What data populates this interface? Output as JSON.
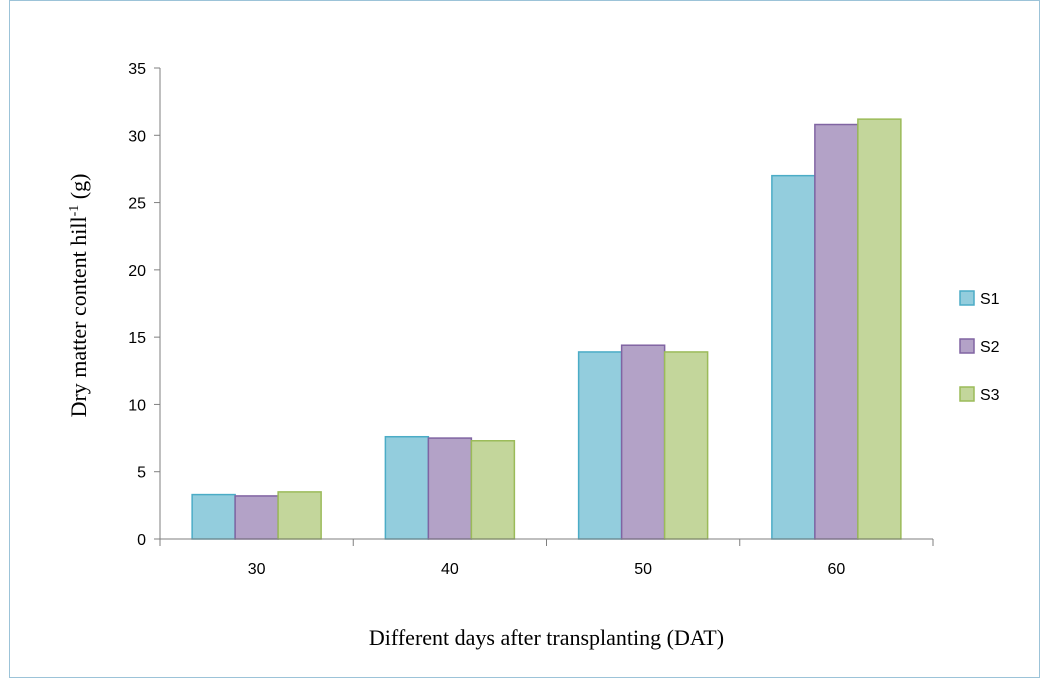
{
  "chart_data": {
    "type": "bar",
    "categories": [
      "30",
      "40",
      "50",
      "60"
    ],
    "series": [
      {
        "name": "S1",
        "values": [
          3.3,
          7.6,
          13.9,
          27.0
        ],
        "color": "#93cddd",
        "stroke": "#4bacc6"
      },
      {
        "name": "S2",
        "values": [
          3.2,
          7.5,
          14.4,
          30.8
        ],
        "color": "#b3a2c7",
        "stroke": "#8064a2"
      },
      {
        "name": "S3",
        "values": [
          3.5,
          7.3,
          13.9,
          31.2
        ],
        "color": "#c3d69b",
        "stroke": "#9bbb59"
      }
    ],
    "xlabel": "Different  days after transplanting  (DAT)",
    "ylabel": {
      "main": "Dry matter  content  hill",
      "superscript": "-1",
      "unit": "  (g)"
    },
    "ylim": [
      0,
      35
    ],
    "yticks": [
      0,
      5,
      10,
      15,
      20,
      25,
      30,
      35
    ],
    "grid": false,
    "legend_position": "right"
  }
}
